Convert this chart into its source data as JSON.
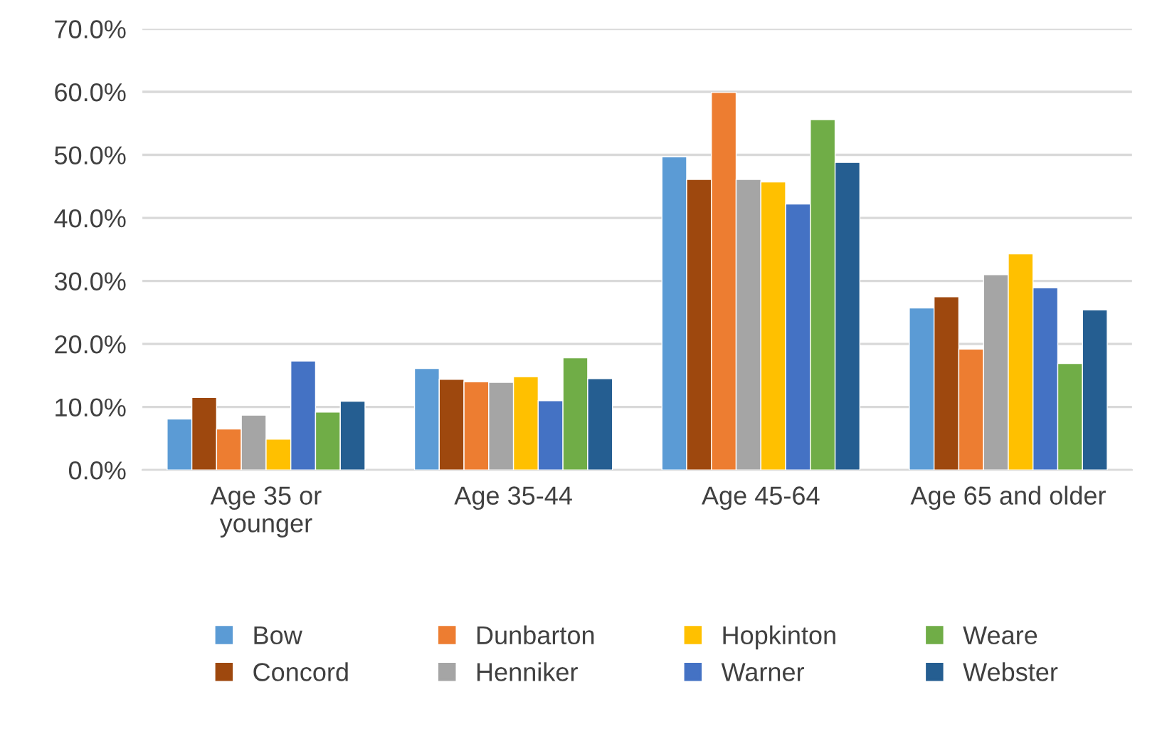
{
  "chart_data": {
    "type": "bar",
    "categories": [
      "Age 35 or\nyounger",
      "Age 35-44",
      "Age 45-64",
      "Age 65 and older"
    ],
    "ylim": [
      0,
      70
    ],
    "yticks": [
      {
        "value": 0,
        "label": "0.0%"
      },
      {
        "value": 10,
        "label": "10.0%"
      },
      {
        "value": 20,
        "label": "20.0%"
      },
      {
        "value": 30,
        "label": "30.0%"
      },
      {
        "value": 40,
        "label": "40.0%"
      },
      {
        "value": 50,
        "label": "50.0%"
      },
      {
        "value": 60,
        "label": "60.0%"
      },
      {
        "value": 70,
        "label": "70.0%"
      }
    ],
    "grid": "y",
    "legend": "bottom",
    "series": [
      {
        "name": "Bow",
        "color": "#5b9bd5",
        "values": [
          8.1,
          16.1,
          49.7,
          25.7
        ]
      },
      {
        "name": "Concord",
        "color": "#9e480e",
        "values": [
          11.5,
          14.4,
          46.1,
          27.5
        ]
      },
      {
        "name": "Dunbarton",
        "color": "#ed7d31",
        "values": [
          6.5,
          14.0,
          59.9,
          19.2
        ]
      },
      {
        "name": "Henniker",
        "color": "#a5a5a5",
        "values": [
          8.7,
          13.9,
          46.1,
          31.0
        ]
      },
      {
        "name": "Hopkinton",
        "color": "#ffc000",
        "values": [
          4.9,
          14.8,
          45.7,
          34.3
        ]
      },
      {
        "name": "Warner",
        "color": "#4472c4",
        "values": [
          17.3,
          11.0,
          42.2,
          28.9
        ]
      },
      {
        "name": "Weare",
        "color": "#70ad47",
        "values": [
          9.2,
          17.8,
          55.6,
          16.9
        ]
      },
      {
        "name": "Webster",
        "color": "#255e91",
        "values": [
          10.9,
          14.5,
          48.8,
          25.4
        ]
      }
    ]
  }
}
